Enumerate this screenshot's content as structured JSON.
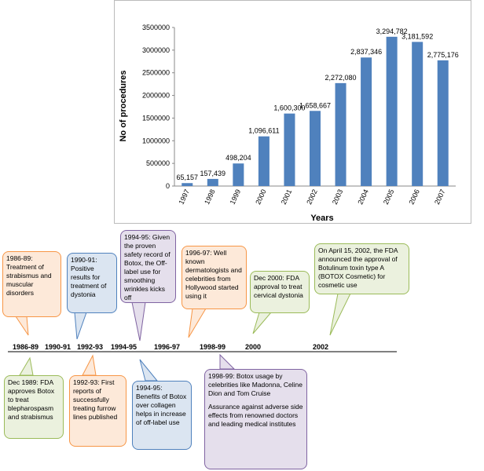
{
  "chart_data": {
    "type": "bar",
    "y_label": "No of procedures",
    "x_label": "Years",
    "categories": [
      "1997",
      "1998",
      "1999",
      "2000",
      "2001",
      "2002",
      "2003",
      "2004",
      "2005",
      "2006",
      "2007"
    ],
    "values": [
      65157,
      157439,
      498204,
      1096611,
      1600300,
      1658667,
      2272080,
      2837346,
      3294782,
      3181592,
      2775176
    ],
    "value_labels": [
      "65,157",
      "157,439",
      "498,204",
      "1,096,611",
      "1,600,300",
      "1,658,667",
      "2,272,080",
      "2,837,346",
      "3,294,782",
      "3,181,592",
      "2,775,176"
    ],
    "color": "#4f81bd",
    "ylim": [
      0,
      3500000
    ],
    "yticks": [
      0,
      500000,
      1000000,
      1500000,
      2000000,
      2500000,
      3000000,
      3500000
    ]
  },
  "timeline": {
    "markers": [
      "1986-89",
      "1990-91",
      "1992-93",
      "1994-95",
      "1996-97",
      "1998-99",
      "2000",
      "2002"
    ],
    "events": [
      {
        "paragraphs": [
          "1986-89: Treatment of strabismus and muscular disorders"
        ]
      },
      {
        "paragraphs": [
          "1990-91: Positive results for treatment of dystonia"
        ]
      },
      {
        "paragraphs": [
          "1994-95: Given the proven safety record of Botox, the Off-label use for smoothing wrinkles kicks off"
        ]
      },
      {
        "paragraphs": [
          "1996-97: Well known dermatologists and celebrities from Hollywood started using it"
        ]
      },
      {
        "paragraphs": [
          "Dec 2000: FDA approval to treat cervical dystonia"
        ]
      },
      {
        "paragraphs": [
          "On April 15, 2002, the FDA announced the approval of Botulinum toxin type A (BOTOX Cosmetic) for cosmetic use"
        ]
      },
      {
        "paragraphs": [
          "Dec 1989: FDA approves Botox to treat blepharospasm and strabismus"
        ]
      },
      {
        "paragraphs": [
          "1992-93: First reports of successfully treating furrow lines published"
        ]
      },
      {
        "paragraphs": [
          "1994-95: Benefits of Botox over collagen helps in increase of off-label use"
        ]
      },
      {
        "paragraphs": [
          "1998-99: Botox usage by celebrities like Madonna, Celine Dion and Tom Cruise",
          "Assurance against adverse side effects from renowned doctors and leading medical institutes"
        ]
      }
    ]
  }
}
